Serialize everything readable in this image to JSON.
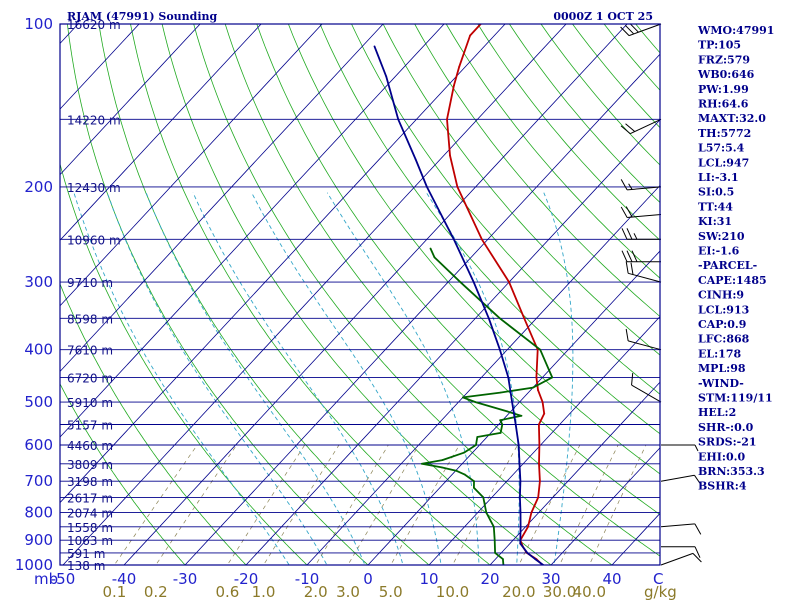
{
  "header": {
    "station": "RJAM (47991) Sounding",
    "time": "0000Z  1 OCT 25"
  },
  "stats": [
    "WMO:47991",
    "TP:105",
    "FRZ:579",
    "WB0:646",
    "PW:1.99",
    "RH:64.6",
    "MAXT:32.0",
    "TH:5772",
    "L57:5.4",
    "LCL:947",
    "LI:-3.1",
    "SI:0.5",
    "TT:44",
    "KI:31",
    "SW:210",
    "EI:-1.6",
    "-PARCEL-",
    "CAPE:1485",
    "CINH:9",
    "LCL:913",
    "CAP:0.9",
    "LFC:868",
    "EL:178",
    "MPL:98",
    "-WIND-",
    "STM:119/11",
    "HEL:2",
    "SHR-:0.0",
    "SRDS:-21",
    "EHI:0.0",
    "BRN:353.3",
    "BSHR:4"
  ],
  "chart_data": {
    "type": "skew-t",
    "title": "RJAM (47991) Sounding",
    "valid_time": "0000Z  1 OCT 25",
    "pressure_axis_label": "mb",
    "pressure_ticks": [
      "100",
      "200",
      "300",
      "400",
      "500",
      "600",
      "700",
      "800",
      "900",
      "1000"
    ],
    "pressure_range_hpa": [
      100,
      1000
    ],
    "temperature_axis_label": "C",
    "temperature_ticks": [
      "-50",
      "-40",
      "-30",
      "-20",
      "-10",
      "0",
      "10",
      "20",
      "30",
      "40"
    ],
    "temperature_range_c": [
      -50,
      50
    ],
    "mixing_ratio_label": "g/kg",
    "mixing_ratio_ticks": [
      "0.1",
      "0.2",
      "0.6",
      "1.0",
      "2.0",
      "3.0",
      "5.0",
      "10.0",
      "20.0",
      "30.0",
      "40.0"
    ],
    "height_labels": [
      {
        "p": 100,
        "label": "16620 m"
      },
      {
        "p": 150,
        "label": "14220 m"
      },
      {
        "p": 200,
        "label": "12430 m"
      },
      {
        "p": 250,
        "label": "10960 m"
      },
      {
        "p": 300,
        "label": "9710 m"
      },
      {
        "p": 350,
        "label": "8598 m"
      },
      {
        "p": 400,
        "label": "7610 m"
      },
      {
        "p": 450,
        "label": "6720 m"
      },
      {
        "p": 500,
        "label": "5910 m"
      },
      {
        "p": 550,
        "label": "5157 m"
      },
      {
        "p": 600,
        "label": "4460 m"
      },
      {
        "p": 650,
        "label": "3809 m"
      },
      {
        "p": 700,
        "label": "3198 m"
      },
      {
        "p": 750,
        "label": "2617 m"
      },
      {
        "p": 800,
        "label": "2074 m"
      },
      {
        "p": 850,
        "label": "1558 m"
      },
      {
        "p": 900,
        "label": "1063 m"
      },
      {
        "p": 950,
        "label": "591 m"
      },
      {
        "p": 1000,
        "label": "138 m"
      }
    ],
    "series": [
      {
        "name": "temperature",
        "color": "#c00000",
        "points": [
          [
            1010,
            29.6
          ],
          [
            1000,
            28.6
          ],
          [
            975,
            26.7
          ],
          [
            950,
            24.2
          ],
          [
            925,
            22.6
          ],
          [
            900,
            21.2
          ],
          [
            850,
            20.4
          ],
          [
            800,
            18.8
          ],
          [
            750,
            17.6
          ],
          [
            700,
            15.4
          ],
          [
            650,
            12.6
          ],
          [
            600,
            9.8
          ],
          [
            550,
            6.6
          ],
          [
            525,
            5.8
          ],
          [
            500,
            3.8
          ],
          [
            475,
            1.2
          ],
          [
            450,
            -1.0
          ],
          [
            400,
            -5.0
          ],
          [
            350,
            -12.0
          ],
          [
            300,
            -20.0
          ],
          [
            250,
            -31.0
          ],
          [
            200,
            -43.0
          ],
          [
            175,
            -49.0
          ],
          [
            150,
            -55.0
          ],
          [
            130,
            -59.0
          ],
          [
            120,
            -61.0
          ],
          [
            105,
            -64.0
          ],
          [
            100,
            -64.0
          ]
        ]
      },
      {
        "name": "dewpoint",
        "color": "#006400",
        "points": [
          [
            1010,
            23.5
          ],
          [
            1000,
            22.2
          ],
          [
            975,
            21.2
          ],
          [
            950,
            19.0
          ],
          [
            900,
            17.0
          ],
          [
            850,
            14.8
          ],
          [
            800,
            11.4
          ],
          [
            750,
            8.6
          ],
          [
            720,
            5.6
          ],
          [
            700,
            4.6
          ],
          [
            680,
            2.0
          ],
          [
            670,
            0.2
          ],
          [
            660,
            -2.8
          ],
          [
            650,
            -6.6
          ],
          [
            640,
            -3.8
          ],
          [
            620,
            -1.4
          ],
          [
            600,
            -0.6
          ],
          [
            580,
            -1.6
          ],
          [
            570,
            1.6
          ],
          [
            550,
            0.6
          ],
          [
            540,
            -0.4
          ],
          [
            530,
            2.4
          ],
          [
            520,
            -0.6
          ],
          [
            500,
            -7.2
          ],
          [
            490,
            -10.0
          ],
          [
            480,
            -4.6
          ],
          [
            470,
            0.0
          ],
          [
            450,
            1.6
          ],
          [
            400,
            -4.6
          ],
          [
            350,
            -16.0
          ],
          [
            300,
            -28.0
          ],
          [
            270,
            -36.0
          ],
          [
            260,
            -38.0
          ]
        ]
      },
      {
        "name": "parcel",
        "color": "#00008b",
        "points": [
          [
            1010,
            29.6
          ],
          [
            975,
            26.5
          ],
          [
            950,
            24.3
          ],
          [
            913,
            21.7
          ],
          [
            900,
            21.2
          ],
          [
            850,
            19.2
          ],
          [
            800,
            17.0
          ],
          [
            750,
            14.6
          ],
          [
            700,
            12.2
          ],
          [
            650,
            9.4
          ],
          [
            600,
            6.4
          ],
          [
            550,
            2.8
          ],
          [
            500,
            -1.2
          ],
          [
            450,
            -5.6
          ],
          [
            400,
            -11.2
          ],
          [
            350,
            -17.8
          ],
          [
            300,
            -25.8
          ],
          [
            250,
            -35.6
          ],
          [
            200,
            -48.0
          ],
          [
            178,
            -54.0
          ],
          [
            150,
            -63.0
          ],
          [
            125,
            -71.5
          ],
          [
            110,
            -78.0
          ]
        ]
      }
    ],
    "wind_barbs": [
      {
        "p": 100,
        "dir": 250,
        "spd": 30
      },
      {
        "p": 150,
        "dir": 245,
        "spd": 20
      },
      {
        "p": 200,
        "dir": 265,
        "spd": 15
      },
      {
        "p": 225,
        "dir": 265,
        "spd": 20
      },
      {
        "p": 250,
        "dir": 270,
        "spd": 25
      },
      {
        "p": 275,
        "dir": 270,
        "spd": 30
      },
      {
        "p": 300,
        "dir": 285,
        "spd": 20
      },
      {
        "p": 400,
        "dir": 285,
        "spd": 10
      },
      {
        "p": 500,
        "dir": 300,
        "spd": 10
      },
      {
        "p": 600,
        "dir": 90,
        "spd": 5
      },
      {
        "p": 700,
        "dir": 80,
        "spd": 10
      },
      {
        "p": 850,
        "dir": 85,
        "spd": 10
      },
      {
        "p": 925,
        "dir": 90,
        "spd": 10
      },
      {
        "p": 1000,
        "dir": 70,
        "spd": 10
      }
    ]
  },
  "colors": {
    "frame": "#00008b",
    "isobar": "#00008b",
    "isotherm": "#00008b",
    "dry_adiabat": "#22aa22",
    "moist_adiabat": "#33a6c8",
    "mixing_ratio": "#8b8355"
  }
}
